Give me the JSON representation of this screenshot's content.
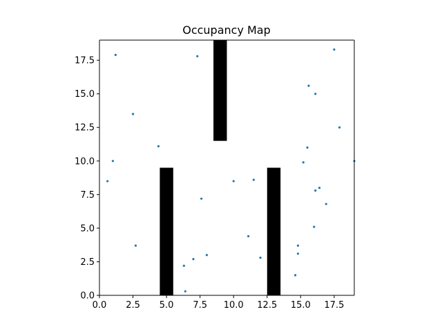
{
  "chart_data": {
    "type": "scatter",
    "title": "Occupancy Map",
    "xlabel": "",
    "ylabel": "",
    "xlim": [
      0,
      19
    ],
    "ylim": [
      0,
      19
    ],
    "grid": false,
    "legend": "none",
    "x_ticks": [
      0.0,
      2.5,
      5.0,
      7.5,
      10.0,
      12.5,
      15.0,
      17.5
    ],
    "x_tick_labels": [
      "0.0",
      "2.5",
      "5.0",
      "7.5",
      "10.0",
      "12.5",
      "15.0",
      "17.5"
    ],
    "y_ticks": [
      0.0,
      2.5,
      5.0,
      7.5,
      10.0,
      12.5,
      15.0,
      17.5
    ],
    "y_tick_labels": [
      "0.0",
      "2.5",
      "5.0",
      "7.5",
      "10.0",
      "12.5",
      "15.0",
      "17.5"
    ],
    "obstacles": [
      {
        "x_min": 8.5,
        "x_max": 9.5,
        "y_min": 11.5,
        "y_max": 19.0
      },
      {
        "x_min": 4.5,
        "x_max": 5.5,
        "y_min": 0.0,
        "y_max": 9.5
      },
      {
        "x_min": 12.5,
        "x_max": 13.5,
        "y_min": 0.0,
        "y_max": 9.5
      }
    ],
    "points": [
      {
        "x": 1.2,
        "y": 17.9
      },
      {
        "x": 7.3,
        "y": 17.8
      },
      {
        "x": 17.5,
        "y": 18.3
      },
      {
        "x": 15.6,
        "y": 15.6
      },
      {
        "x": 16.1,
        "y": 15.0
      },
      {
        "x": 2.5,
        "y": 13.5
      },
      {
        "x": 17.9,
        "y": 12.5
      },
      {
        "x": 4.4,
        "y": 11.1
      },
      {
        "x": 15.5,
        "y": 11.0
      },
      {
        "x": 1.0,
        "y": 10.0
      },
      {
        "x": 15.2,
        "y": 9.9
      },
      {
        "x": 19.0,
        "y": 10.0
      },
      {
        "x": 0.6,
        "y": 8.5
      },
      {
        "x": 10.0,
        "y": 8.5
      },
      {
        "x": 11.5,
        "y": 8.6
      },
      {
        "x": 16.4,
        "y": 8.0
      },
      {
        "x": 16.1,
        "y": 7.8
      },
      {
        "x": 7.6,
        "y": 7.2
      },
      {
        "x": 16.9,
        "y": 6.8
      },
      {
        "x": 16.0,
        "y": 5.1
      },
      {
        "x": 11.1,
        "y": 4.4
      },
      {
        "x": 14.8,
        "y": 3.7
      },
      {
        "x": 2.7,
        "y": 3.7
      },
      {
        "x": 14.8,
        "y": 3.1
      },
      {
        "x": 8.0,
        "y": 3.0
      },
      {
        "x": 12.0,
        "y": 2.8
      },
      {
        "x": 7.0,
        "y": 2.7
      },
      {
        "x": 6.3,
        "y": 2.2
      },
      {
        "x": 14.6,
        "y": 1.5
      },
      {
        "x": 6.4,
        "y": 0.3
      }
    ],
    "colors": {
      "point": "#1f77b4",
      "obstacle": "#000000",
      "axes": "#000000",
      "background": "#ffffff"
    }
  }
}
